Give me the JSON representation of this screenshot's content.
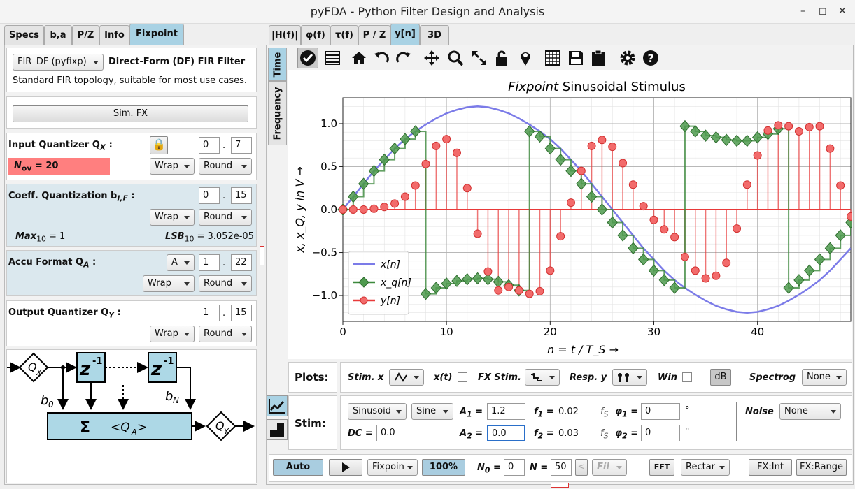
{
  "window": {
    "title": "pyFDA - Python Filter Design and Analysis",
    "minimize": "–",
    "restore": "◻",
    "close": "✕"
  },
  "left_tabs": [
    "Specs",
    "b,a",
    "P/Z",
    "Info",
    "Fixpoint"
  ],
  "filter": {
    "topology": "FIR_DF (pyfixp)",
    "name": "Direct-Form (DF) FIR Filter",
    "desc": "Standard FIR topology, suitable for most use cases.",
    "sim_button": "Sim. FX"
  },
  "input_q": {
    "label": "Input Quantizer Q",
    "sub": "X",
    "lock_icon": "lock-icon",
    "w_int": "0",
    "w_frac": "7",
    "nov_label": "N",
    "nov_sub": "ov",
    "nov_value": " = 20",
    "ovfl": "Wrap",
    "quant": "Round",
    "dot": "."
  },
  "coeff_q": {
    "label": "Coeff. Quantization b",
    "sub": "I,F",
    "w_int": "0",
    "w_frac": "15",
    "ovfl": "Wrap",
    "quant": "Round",
    "max_label": "Max",
    "max_sub": "10",
    "max_value": " = 1",
    "lsb_label": "LSB",
    "lsb_sub": "10",
    "lsb_value": " = 3.052e-05"
  },
  "accu": {
    "label": "Accu Format Q",
    "sub": "A",
    "mode": "A",
    "w_int": "1",
    "w_frac": "22",
    "ovfl": "Wrap",
    "quant": "Round"
  },
  "output_q": {
    "label": "Output Quantizer Q",
    "sub": "Y",
    "w_int": "1",
    "w_frac": "15",
    "ovfl": "Wrap",
    "quant": "Round"
  },
  "diagram": {
    "qx": "Q",
    "qx_sub": "X",
    "z": "z",
    "zexp": "-1",
    "b0": "b",
    "b0_sub": "0",
    "bn": "b",
    "bn_sub": "N",
    "sum": "Σ",
    "qa": "<Q",
    "qa_sub": "A",
    "qa_end": ">",
    "qy": "Q",
    "qy_sub": "Y"
  },
  "right_tabs": [
    "|H(f)|",
    "φ(f)",
    "τ(f)",
    "P / Z",
    "y[n]",
    "3D"
  ],
  "side_tabs": [
    "Time",
    "Frequency"
  ],
  "toolbar": [
    "check-icon",
    "lines-icon",
    "home-icon",
    "undo-icon",
    "redo-icon",
    "pan-icon",
    "zoom-icon",
    "fullscreen-icon",
    "lock-icon",
    "marker-icon",
    "grid-icon",
    "save-icon",
    "clipboard-icon",
    "settings-icon",
    "help-icon"
  ],
  "plot": {
    "title_italic": "Fixpoint",
    "title_rest": " Sinusoidal Stimulus",
    "ylabel": "x, x_Q, y in V →",
    "xlabel": "n = t / T_S  →",
    "legend": [
      "x[n]",
      "x_q[n]",
      "y[n]"
    ]
  },
  "chart_data": {
    "type": "line",
    "title": "Fixpoint Sinusoidal Stimulus",
    "xlabel": "n = t / T_S →",
    "ylabel": "x, x_Q, y in V →",
    "xlim": [
      0,
      49
    ],
    "ylim": [
      -1.3,
      1.3
    ],
    "xticks": [
      0,
      10,
      20,
      30,
      40
    ],
    "yticks": [
      "1.0",
      "0.5",
      "0.0",
      "−0.5",
      "−1.0"
    ],
    "grid": true,
    "legend_position": "bottom-left",
    "series": [
      {
        "name": "x[n]",
        "color": "#7b7be8",
        "style": "line",
        "x": [
          0,
          1,
          2,
          3,
          4,
          5,
          6,
          7,
          8,
          9,
          10,
          11,
          12,
          13,
          14,
          15,
          16,
          17,
          18,
          19,
          20,
          21,
          22,
          23,
          24,
          25,
          26,
          27,
          28,
          29,
          30,
          31,
          32,
          33,
          34,
          35,
          36,
          37,
          38,
          39,
          40,
          41,
          42,
          43,
          44,
          45,
          46,
          47,
          48,
          49
        ],
        "y": [
          0,
          0.15,
          0.3,
          0.45,
          0.58,
          0.71,
          0.82,
          0.91,
          0.99,
          1.06,
          1.12,
          1.16,
          1.19,
          1.2,
          1.19,
          1.16,
          1.12,
          1.06,
          0.99,
          0.91,
          0.82,
          0.71,
          0.58,
          0.45,
          0.3,
          0.15,
          0,
          -0.15,
          -0.3,
          -0.45,
          -0.58,
          -0.71,
          -0.82,
          -0.91,
          -0.99,
          -1.06,
          -1.12,
          -1.16,
          -1.19,
          -1.2,
          -1.19,
          -1.16,
          -1.12,
          -1.06,
          -0.99,
          -0.91,
          -0.82,
          -0.71,
          -0.58,
          -0.45
        ]
      },
      {
        "name": "x_q[n]",
        "color": "#3d8a3d",
        "style": "step-diamond",
        "x": [
          0,
          1,
          2,
          3,
          4,
          5,
          6,
          7,
          8,
          9,
          10,
          11,
          12,
          13,
          14,
          15,
          16,
          17,
          18,
          19,
          20,
          21,
          22,
          23,
          24,
          25,
          26,
          27,
          28,
          29,
          30,
          31,
          32,
          33,
          34,
          35,
          36,
          37,
          38,
          39,
          40,
          41,
          42,
          43,
          44,
          45,
          46,
          47,
          48,
          49
        ],
        "y": [
          0,
          0.15,
          0.3,
          0.45,
          0.58,
          0.71,
          0.82,
          0.91,
          -0.98,
          -0.91,
          -0.86,
          -0.83,
          -0.81,
          -0.8,
          -0.81,
          -0.84,
          -0.88,
          -0.94,
          0.91,
          0.85,
          0.71,
          0.58,
          0.45,
          0.3,
          0.15,
          0,
          -0.15,
          -0.3,
          -0.45,
          -0.58,
          -0.71,
          -0.82,
          -0.91,
          0.97,
          0.91,
          0.86,
          0.84,
          0.81,
          0.8,
          0.8,
          0.84,
          0.88,
          0.94,
          -0.91,
          -0.82,
          -0.71,
          -0.58,
          -0.45,
          -0.3,
          -0.15
        ]
      },
      {
        "name": "y[n]",
        "color": "#e83a3a",
        "style": "stem",
        "x": [
          0,
          1,
          2,
          3,
          4,
          5,
          6,
          7,
          8,
          9,
          10,
          11,
          12,
          13,
          14,
          15,
          16,
          17,
          18,
          19,
          20,
          21,
          22,
          23,
          24,
          25,
          26,
          27,
          28,
          29,
          30,
          31,
          32,
          33,
          34,
          35,
          36,
          37,
          38,
          39,
          40,
          41,
          42,
          43,
          44,
          45,
          46,
          47,
          48,
          49
        ],
        "y": [
          0,
          0,
          0,
          0.01,
          0.03,
          0.07,
          0.15,
          0.28,
          0.53,
          0.74,
          0.82,
          0.66,
          0.25,
          -0.28,
          -0.72,
          -0.94,
          -0.9,
          -0.94,
          -0.98,
          -0.95,
          -0.71,
          -0.31,
          0.08,
          0.45,
          0.74,
          0.81,
          0.73,
          0.54,
          0.29,
          0.04,
          -0.12,
          -0.23,
          -0.32,
          -0.55,
          -0.71,
          -0.8,
          -0.77,
          -0.62,
          -0.22,
          0.29,
          0.63,
          0.92,
          0.98,
          0.97,
          0.91,
          0.96,
          0.97,
          0.71,
          0.28,
          -0.08
        ]
      }
    ]
  },
  "plots_row": {
    "label": "Plots:",
    "stim_x": "Stim. x",
    "xt": "x(t)",
    "fx_stim": "FX Stim.",
    "resp_y": "Resp. y",
    "win": "Win",
    "db": "dB",
    "spectro": "Spectrog",
    "spectro_val": "None"
  },
  "stim_row": {
    "label": "Stim:",
    "type": "Sinusoid",
    "shape": "Sine",
    "a1": "A",
    "a1_sub": "1",
    "a1_val": "1.2",
    "f1": "f",
    "f1_sub": "1",
    "f1_val": "0.02",
    "fs": "f",
    "fs_sub": "S",
    "phi1": "φ",
    "phi1_sub": "1",
    "phi1_val": "0",
    "deg": "°",
    "noise": "Noise",
    "noise_val": "None",
    "dc": "DC",
    "dc_val": "0.0",
    "a2": "A",
    "a2_sub": "2",
    "a2_val": "0.0",
    "f2": "f",
    "f2_sub": "2",
    "f2_val": "0.03",
    "phi2": "φ",
    "phi2_sub": "2",
    "phi2_val": "0",
    "eq": " ="
  },
  "bottom": {
    "auto": "Auto",
    "play_icon": "play-icon",
    "mode": "Fixpoin",
    "percent": "100%",
    "n0": "N",
    "n0_sub": "0",
    "n0_val": "0",
    "n": "N",
    "n_val": "50",
    "fil": "Fil",
    "fft": "FFT",
    "window": "Rectar",
    "fx_int": "FX:Int",
    "fx_range": "FX:Range"
  }
}
